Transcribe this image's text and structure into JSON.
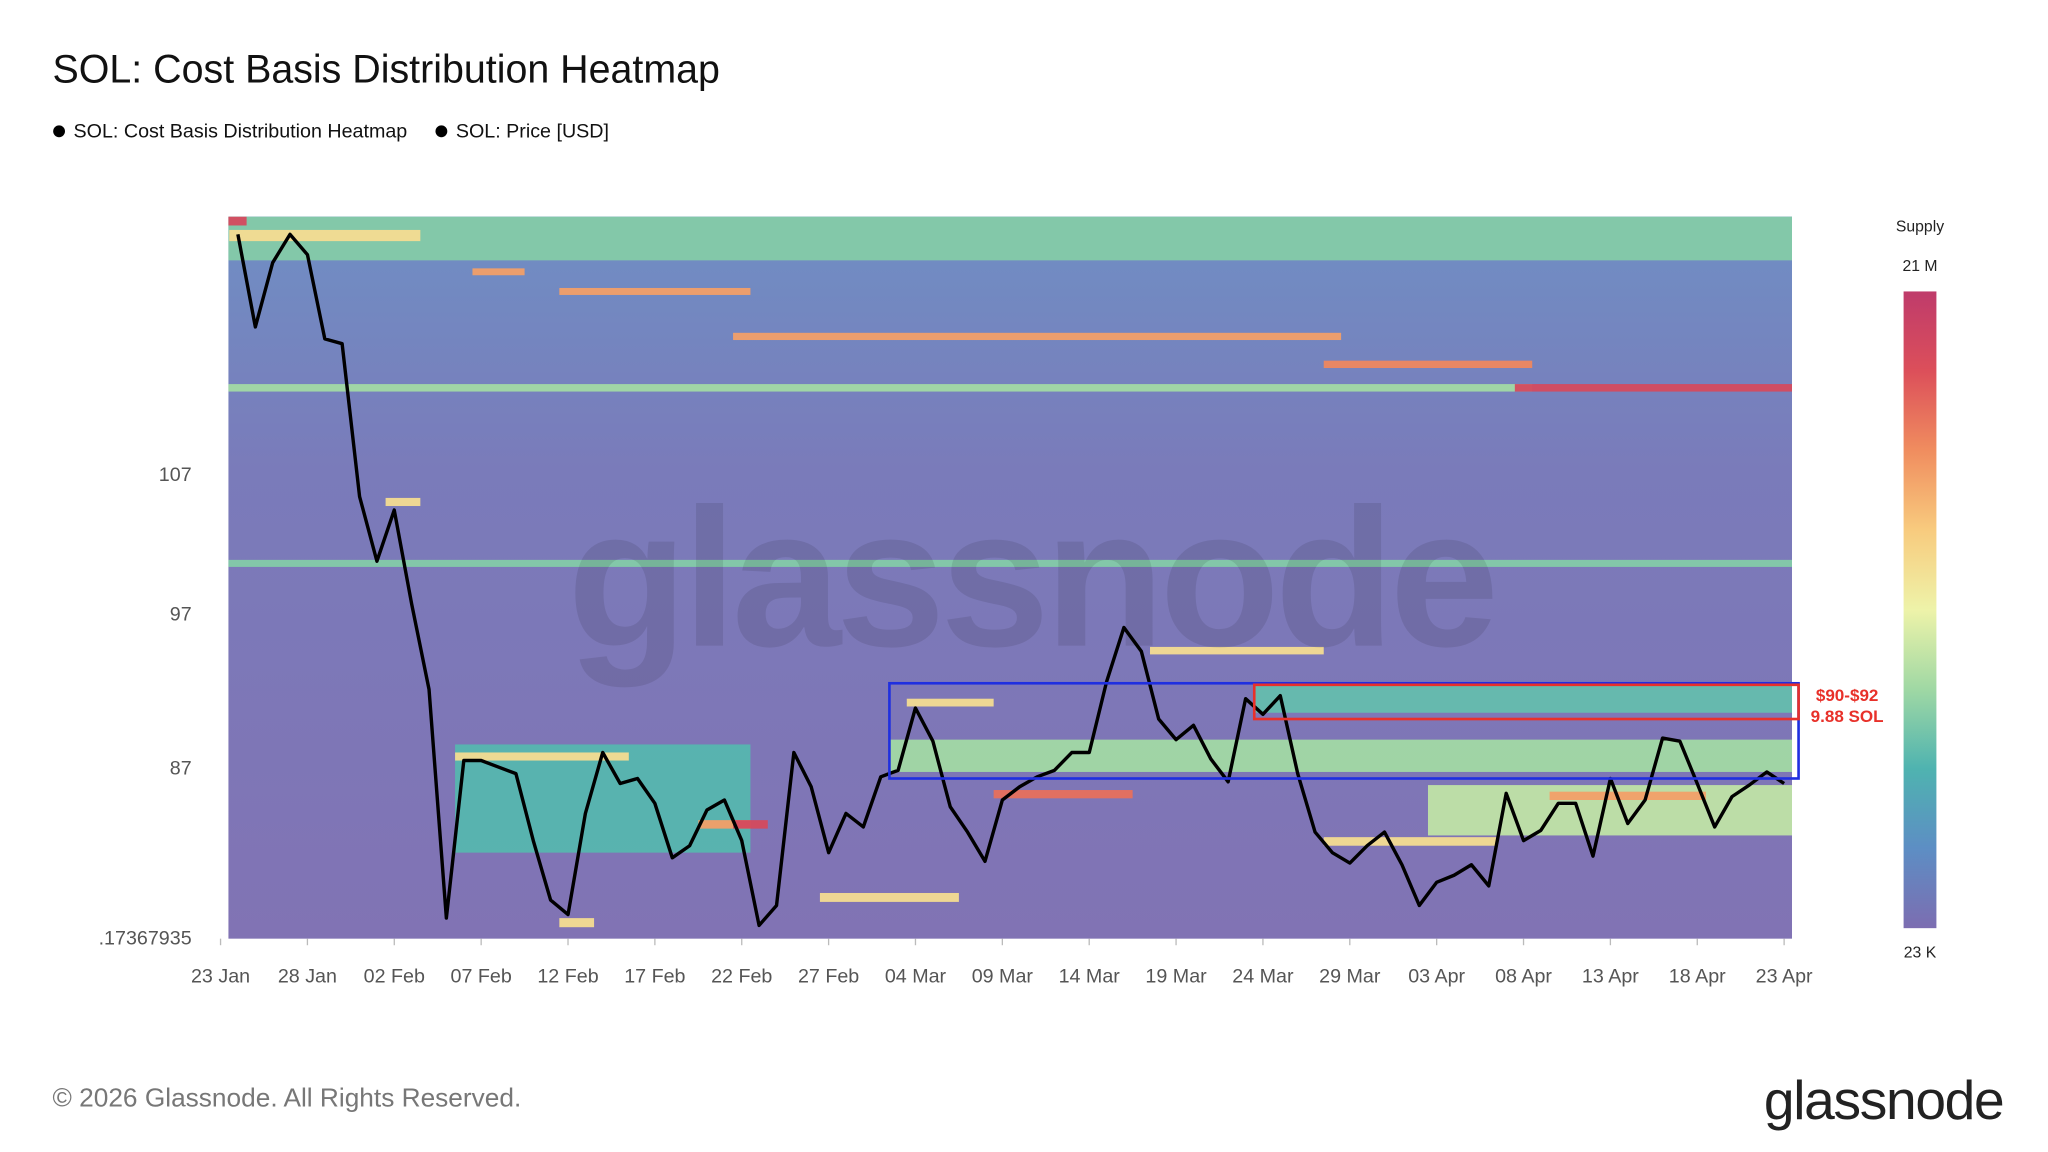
{
  "chart_data": {
    "type": "heatmap",
    "title": "SOL: Cost Basis Distribution Heatmap",
    "watermark": "glassnode",
    "footer": "© 2026 Glassnode. All Rights Reserved.",
    "logo": "glassnode",
    "x": [
      "23 Jan",
      "24 Jan",
      "25 Jan",
      "26 Jan",
      "27 Jan",
      "28 Jan",
      "29 Jan",
      "30 Jan",
      "31 Jan",
      "01 Feb",
      "02 Feb",
      "03 Feb",
      "04 Feb",
      "05 Feb",
      "06 Feb",
      "07 Feb",
      "08 Feb",
      "09 Feb",
      "10 Feb",
      "11 Feb",
      "12 Feb",
      "13 Feb",
      "14 Feb",
      "15 Feb",
      "16 Feb",
      "17 Feb",
      "18 Feb",
      "19 Feb",
      "20 Feb",
      "21 Feb",
      "22 Feb",
      "23 Feb",
      "24 Feb",
      "25 Feb",
      "26 Feb",
      "27 Feb",
      "28 Feb",
      "01 Mar",
      "02 Mar",
      "03 Mar",
      "04 Mar",
      "05 Mar",
      "06 Mar",
      "07 Mar",
      "08 Mar",
      "09 Mar",
      "10 Mar",
      "11 Mar",
      "12 Mar",
      "13 Mar",
      "14 Mar",
      "15 Mar",
      "16 Mar",
      "17 Mar",
      "18 Mar",
      "19 Mar",
      "20 Mar",
      "21 Mar",
      "22 Mar",
      "23 Mar",
      "24 Mar",
      "25 Mar",
      "26 Mar",
      "27 Mar",
      "28 Mar",
      "29 Mar",
      "30 Mar",
      "31 Mar",
      "01 Apr",
      "02 Apr",
      "03 Apr",
      "04 Apr",
      "05 Apr",
      "06 Apr",
      "07 Apr",
      "08 Apr",
      "09 Apr",
      "10 Apr",
      "11 Apr",
      "12 Apr",
      "13 Apr",
      "14 Apr",
      "15 Apr",
      "16 Apr",
      "17 Apr",
      "18 Apr",
      "19 Apr",
      "20 Apr",
      "21 Apr",
      "22 Apr",
      "23 Apr"
    ],
    "xticks": [
      "23 Jan",
      "28 Jan",
      "02 Feb",
      "07 Feb",
      "12 Feb",
      "17 Feb",
      "22 Feb",
      "27 Feb",
      "04 Mar",
      "09 Mar",
      "14 Mar",
      "19 Mar",
      "24 Mar",
      "29 Mar",
      "03 Apr",
      "08 Apr",
      "13 Apr",
      "18 Apr",
      "23 Apr"
    ],
    "ylim": [
      77.17367935,
      128.4
    ],
    "yticks": [
      {
        "value": 77.17367935,
        "label": ".17367935"
      },
      87,
      97,
      107
    ],
    "log_scale": true,
    "grid": false,
    "series": [
      {
        "name": "SOL: Cost Basis Distribution Heatmap",
        "color": "#000000",
        "bands": [
          {
            "start": "23 Jan",
            "end": "23 Apr",
            "low": 124.5,
            "high": 128.4,
            "supply": 7000000
          },
          {
            "start": "06 Feb",
            "end": "22 Feb",
            "low": 82.0,
            "high": 88.5,
            "supply": 5500000
          },
          {
            "start": "03 Mar",
            "end": "23 Apr",
            "low": 86.8,
            "high": 88.8,
            "supply": 8000000
          },
          {
            "start": "03 Apr",
            "end": "23 Apr",
            "low": 83.0,
            "high": 86.0,
            "supply": 9000000
          },
          {
            "start": "24 Mar",
            "end": "23 Apr",
            "low": 90.5,
            "high": 92.3,
            "supply": 6000000
          },
          {
            "start": "23 Jan",
            "end": "24 Jan",
            "low": 127.6,
            "high": 128.4,
            "supply": 19000000
          },
          {
            "start": "24 Jan",
            "end": "03 Feb",
            "low": 126.2,
            "high": 127.2,
            "supply": 12000000
          },
          {
            "start": "07 Feb",
            "end": "09 Feb",
            "low": 123.2,
            "high": 123.8,
            "supply": 15000000
          },
          {
            "start": "12 Feb",
            "end": "22 Feb",
            "low": 121.5,
            "high": 122.1,
            "supply": 15000000
          },
          {
            "start": "22 Feb",
            "end": "28 Mar",
            "low": 117.7,
            "high": 118.3,
            "supply": 15000000
          },
          {
            "start": "28 Mar",
            "end": "08 Apr",
            "low": 115.4,
            "high": 116.0,
            "supply": 16000000
          },
          {
            "start": "23 Jan",
            "end": "08 Apr",
            "low": 113.5,
            "high": 114.1,
            "supply": 8000000
          },
          {
            "start": "08 Apr",
            "end": "23 Apr",
            "low": 113.5,
            "high": 114.1,
            "supply": 19000000
          },
          {
            "start": "02 Feb",
            "end": "03 Feb",
            "low": 104.7,
            "high": 105.3,
            "supply": 12000000
          },
          {
            "start": "23 Jan",
            "end": "23 Apr",
            "low": 100.3,
            "high": 100.8,
            "supply": 7000000
          },
          {
            "start": "18 Mar",
            "end": "27 Mar",
            "low": 94.3,
            "high": 94.8,
            "supply": 12000000
          },
          {
            "start": "04 Mar",
            "end": "08 Mar",
            "low": 90.9,
            "high": 91.4,
            "supply": 12000000
          },
          {
            "start": "06 Feb",
            "end": "15 Feb",
            "low": 87.5,
            "high": 88.0,
            "supply": 12000000
          },
          {
            "start": "09 Mar",
            "end": "16 Mar",
            "low": 85.2,
            "high": 85.7,
            "supply": 17000000
          },
          {
            "start": "10 Apr",
            "end": "18 Apr",
            "low": 85.1,
            "high": 85.6,
            "supply": 15000000
          },
          {
            "start": "20 Feb",
            "end": "22 Feb",
            "low": 83.4,
            "high": 83.9,
            "supply": 15000000
          },
          {
            "start": "22 Feb",
            "end": "23 Feb",
            "low": 83.4,
            "high": 83.9,
            "supply": 19000000
          },
          {
            "start": "28 Mar",
            "end": "06 Apr",
            "low": 82.4,
            "high": 82.9,
            "supply": 12000000
          },
          {
            "start": "27 Feb",
            "end": "06 Mar",
            "low": 79.2,
            "high": 79.7,
            "supply": 12000000
          },
          {
            "start": "12 Feb",
            "end": "13 Feb",
            "low": 77.8,
            "high": 78.3,
            "supply": 12000000
          }
        ]
      },
      {
        "name": "SOL: Price [USD]",
        "color": "#000000",
        "values": [
          null,
          126.8,
          118.8,
          124.3,
          126.8,
          125.0,
          117.8,
          117.4,
          105.4,
          100.7,
          104.4,
          97.7,
          92.0,
          78.3,
          87.5,
          87.5,
          87.1,
          86.7,
          82.7,
          79.3,
          78.5,
          84.3,
          88.0,
          86.1,
          86.4,
          84.9,
          81.7,
          82.4,
          84.5,
          85.1,
          82.7,
          77.9,
          79.0,
          88.0,
          85.9,
          82.0,
          84.3,
          83.5,
          86.5,
          86.9,
          90.8,
          88.7,
          84.7,
          83.2,
          81.5,
          85.1,
          85.9,
          86.5,
          86.9,
          88.0,
          88.0,
          92.5,
          96.1,
          94.5,
          90.1,
          88.8,
          89.7,
          87.6,
          86.2,
          91.4,
          90.4,
          91.6,
          86.7,
          83.2,
          82.0,
          81.4,
          82.4,
          83.2,
          81.3,
          79.0,
          80.3,
          80.7,
          81.3,
          80.1,
          85.5,
          82.7,
          83.3,
          84.9,
          84.9,
          81.8,
          86.4,
          83.7,
          85.1,
          88.9,
          88.7,
          86.1,
          83.5,
          85.3,
          86.0,
          86.8,
          86.1
        ]
      }
    ],
    "colorbar": {
      "title": "Supply",
      "clim": [
        23000,
        21000000
      ],
      "ticks": [
        {
          "value": 21000000,
          "label": "21 M"
        },
        {
          "value": 23000,
          "label": "23 K"
        }
      ],
      "colorscale": [
        "#7c6db1",
        "#5d8ec4",
        "#4fb3b0",
        "#9fd8a4",
        "#eef3a9",
        "#f8cb7e",
        "#f08d5f",
        "#dc4f5a",
        "#bf3b6b"
      ]
    },
    "highlight_boxes": [
      {
        "color": "#1f2fe0",
        "start": "03 Mar",
        "end": "23 Apr",
        "low": 86.4,
        "high": 92.4
      },
      {
        "color": "#e8312a",
        "start": "24 Mar",
        "end": "23 Apr",
        "low": 90.1,
        "high": 92.3,
        "labels": [
          "$90-$92",
          "9.88 SOL"
        ]
      }
    ]
  }
}
